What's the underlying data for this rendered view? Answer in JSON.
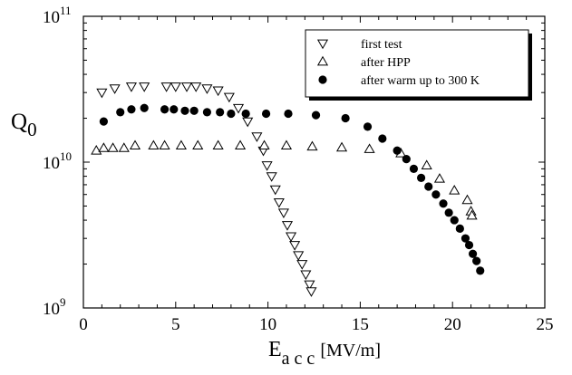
{
  "chart_data": {
    "type": "scatter",
    "xlabel": "E",
    "xlabel_sub": "a c c",
    "xlabel_unit": "[MV/m]",
    "ylabel": "Q",
    "ylabel_sub": "0",
    "xlim": [
      0,
      25
    ],
    "ylim": [
      1000000000.0,
      100000000000.0
    ],
    "yscale": "log",
    "x_ticks": [
      "0",
      "5",
      "10",
      "15",
      "20",
      "25"
    ],
    "y_ticks": [
      {
        "base": "10",
        "exp": "9"
      },
      {
        "base": "10",
        "exp": "10"
      },
      {
        "base": "10",
        "exp": "11"
      }
    ],
    "grid": false,
    "legend_position": "top-right",
    "series": [
      {
        "name": "first test",
        "marker": "triangle-down-open",
        "x": [
          1.0,
          1.7,
          2.6,
          3.3,
          4.5,
          5.0,
          5.6,
          6.1,
          6.7,
          7.3,
          7.9,
          8.4,
          8.9,
          9.4,
          9.75,
          9.95,
          10.2,
          10.4,
          10.6,
          10.85,
          11.05,
          11.25,
          11.45,
          11.65,
          11.85,
          12.05,
          12.25,
          12.35
        ],
        "y": [
          30000000000.0,
          32000000000.0,
          33000000000.0,
          33000000000.0,
          33000000000.0,
          33000000000.0,
          33000000000.0,
          33000000000.0,
          32000000000.0,
          31000000000.0,
          28000000000.0,
          23500000000.0,
          19000000000.0,
          15000000000.0,
          12000000000.0,
          9500000000.0,
          8000000000.0,
          6500000000.0,
          5300000000.0,
          4500000000.0,
          3700000000.0,
          3100000000.0,
          2700000000.0,
          2300000000.0,
          2000000000.0,
          1700000000.0,
          1450000000.0,
          1300000000.0
        ]
      },
      {
        "name": "after HPP",
        "marker": "triangle-up-open",
        "x": [
          0.7,
          1.1,
          1.6,
          2.2,
          2.8,
          3.8,
          4.4,
          5.3,
          6.2,
          7.3,
          8.5,
          9.8,
          11.0,
          12.4,
          14.0,
          15.5,
          17.2,
          18.6,
          19.3,
          20.1,
          20.8,
          21.0,
          21.05
        ],
        "y": [
          12000000000.0,
          12500000000.0,
          12500000000.0,
          12500000000.0,
          13000000000.0,
          13000000000.0,
          13000000000.0,
          13000000000.0,
          13000000000.0,
          13000000000.0,
          13000000000.0,
          13000000000.0,
          13000000000.0,
          12800000000.0,
          12600000000.0,
          12300000000.0,
          11500000000.0,
          9500000000.0,
          7700000000.0,
          6400000000.0,
          5500000000.0,
          4600000000.0,
          4300000000.0
        ]
      },
      {
        "name": "after warm up to 300 K",
        "marker": "circle-filled",
        "x": [
          1.1,
          2.0,
          2.6,
          3.3,
          4.4,
          4.9,
          5.5,
          6.0,
          6.7,
          7.4,
          8.0,
          8.8,
          9.9,
          11.1,
          12.6,
          14.2,
          15.4,
          16.2,
          17.0,
          17.5,
          17.9,
          18.3,
          18.7,
          19.1,
          19.5,
          19.8,
          20.1,
          20.4,
          20.7,
          20.9,
          21.1,
          21.3,
          21.5
        ],
        "y": [
          19000000000.0,
          22000000000.0,
          23000000000.0,
          23500000000.0,
          23000000000.0,
          23000000000.0,
          22500000000.0,
          22500000000.0,
          22000000000.0,
          22000000000.0,
          21500000000.0,
          21500000000.0,
          21500000000.0,
          21500000000.0,
          21000000000.0,
          20000000000.0,
          17500000000.0,
          14500000000.0,
          12000000000.0,
          10500000000.0,
          9000000000.0,
          7800000000.0,
          6800000000.0,
          6000000000.0,
          5200000000.0,
          4500000000.0,
          4000000000.0,
          3500000000.0,
          3000000000.0,
          2700000000.0,
          2350000000.0,
          2100000000.0,
          1800000000.0
        ]
      }
    ]
  }
}
